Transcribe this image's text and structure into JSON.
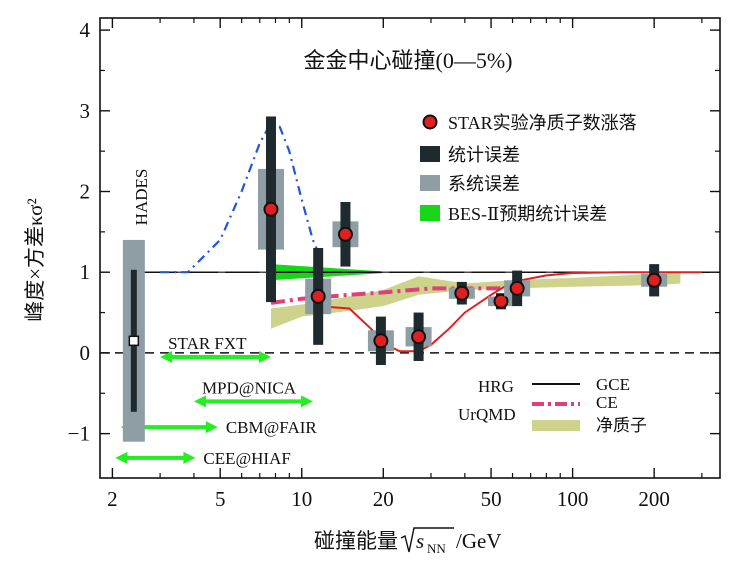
{
  "chart_data": {
    "type": "scatter",
    "title": "金金中心碰撞(0—5%)",
    "xlabel_prefix": "碰撞能量",
    "xlabel_var": "s",
    "xlabel_sub": "NN",
    "xlabel_suffix": "/GeV",
    "ylabel": "峰度×方差κσ²",
    "xscale": "log",
    "xlim": [
      1.8,
      350
    ],
    "ylim": [
      -1.55,
      4.15
    ],
    "x_ticks": [
      2,
      5,
      10,
      20,
      50,
      100,
      200
    ],
    "x_tick_labels": [
      "2",
      "5",
      "10",
      "20",
      "50",
      "100",
      "200"
    ],
    "y_ticks": [
      -1,
      0,
      1,
      2,
      3,
      4
    ],
    "y_tick_labels": [
      "−1",
      "0",
      "1",
      "2",
      "3",
      "4"
    ],
    "colors": {
      "star_marker": "#e02020",
      "stat_error": "#1f2a2e",
      "sys_error": "#8f9ea4",
      "bes2": "#17d617",
      "ce": "#e0407a",
      "ce_low": "#e02020",
      "hrg_dash": "#2255dd",
      "urqmd": "#cdd38a",
      "facility": "#22ee22"
    },
    "star": {
      "legend": "STAR实验净质子数涨落",
      "points": [
        {
          "x": 7.7,
          "y": 1.78,
          "stat": 1.15,
          "sys": 0.5
        },
        {
          "x": 11.5,
          "y": 0.7,
          "stat": 0.6,
          "sys": 0.22
        },
        {
          "x": 14.5,
          "y": 1.47,
          "stat": 0.4,
          "sys": 0.16
        },
        {
          "x": 19.6,
          "y": 0.15,
          "stat": 0.3,
          "sys": 0.13
        },
        {
          "x": 27,
          "y": 0.2,
          "stat": 0.3,
          "sys": 0.12
        },
        {
          "x": 39,
          "y": 0.74,
          "stat": 0.14,
          "sys": 0.07
        },
        {
          "x": 54.4,
          "y": 0.64,
          "stat": 0.1,
          "sys": 0.06
        },
        {
          "x": 62.4,
          "y": 0.8,
          "stat": 0.22,
          "sys": 0.1
        },
        {
          "x": 200,
          "y": 0.9,
          "stat": 0.2,
          "sys": 0.08
        }
      ]
    },
    "hades": {
      "label": "HADES",
      "x": 2.4,
      "y": 0.15,
      "stat": 0.88,
      "sys": 1.25
    },
    "legend_items": [
      {
        "label": "统计误差"
      },
      {
        "label": "系统误差"
      },
      {
        "label": "BES-Ⅱ预期统计误差"
      }
    ],
    "bes2_band": {
      "x": [
        7.7,
        19.6
      ],
      "y": 1.0,
      "half_width_start": 0.1,
      "half_width_end": 0.0
    },
    "hrg_gce": {
      "x": [
        3,
        300
      ],
      "y": 1.0
    },
    "ce_curve": {
      "x": [
        7.7,
        10,
        15,
        20,
        30,
        50,
        65
      ],
      "y": [
        0.62,
        0.67,
        0.72,
        0.75,
        0.8,
        0.8,
        0.8
      ]
    },
    "ce_low_curve": {
      "x": [
        11.5,
        15,
        18,
        20,
        23,
        27,
        30,
        35,
        40,
        50,
        60,
        80,
        100,
        150,
        300
      ],
      "y": [
        0.58,
        0.55,
        0.3,
        0.12,
        0.02,
        0.02,
        0.1,
        0.3,
        0.5,
        0.72,
        0.88,
        0.96,
        0.99,
        1.0,
        1.0
      ]
    },
    "hrg_dashed_curve": {
      "x": [
        3,
        3.8,
        5,
        6,
        7,
        7.7,
        8.3,
        9,
        10,
        11,
        12
      ],
      "y": [
        1.0,
        1.0,
        1.4,
        2.0,
        2.6,
        2.85,
        2.8,
        2.5,
        1.9,
        1.4,
        1.1
      ]
    },
    "urqmd_band": {
      "x": [
        7.7,
        10,
        15,
        20,
        27,
        40,
        60,
        100,
        200,
        250
      ],
      "y_low": [
        0.3,
        0.45,
        0.52,
        0.58,
        0.72,
        0.78,
        0.8,
        0.82,
        0.84,
        0.86
      ],
      "y_high": [
        0.55,
        0.6,
        0.7,
        0.78,
        0.95,
        0.86,
        0.9,
        0.93,
        0.98,
        1.0
      ]
    },
    "model_legend": {
      "hrg": "HRG",
      "urqmd": "UrQMD",
      "gce": "GCE",
      "ce": "CE",
      "net_proton": "净质子"
    },
    "facilities": [
      {
        "label": "STAR FXT",
        "x": [
          3.0,
          7.7
        ],
        "y": -0.05
      },
      {
        "label": "MPD@NICA",
        "x": [
          4.0,
          11.0
        ],
        "y": -0.6
      },
      {
        "label": "CBM@FAIR",
        "x": [
          2.15,
          4.9
        ],
        "y": -0.92
      },
      {
        "label": "CEE@HIAF",
        "x": [
          2.05,
          4.05
        ],
        "y": -1.3
      }
    ]
  }
}
